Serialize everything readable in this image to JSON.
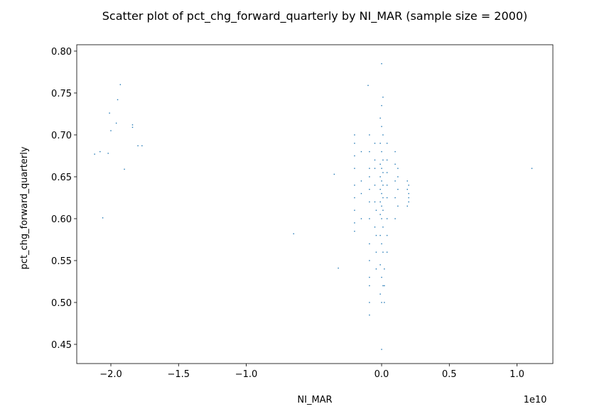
{
  "chart_data": {
    "type": "scatter",
    "title": "Scatter plot of pct_chg_forward_quarterly by NI_MAR (sample size = 2000)",
    "x_label": "NI_MAR",
    "y_label": "pct_chg_forward_quarterly",
    "x_offset_label": "1e10",
    "color": "#1f77b4",
    "x": [
      -2.12,
      -2.08,
      -2.02,
      -2.06,
      -2.0,
      -2.01,
      -1.95,
      -1.93,
      -1.96,
      -1.84,
      -1.84,
      -1.8,
      -1.77,
      -1.9,
      -0.65,
      -0.35,
      -0.32,
      1.11,
      0.0,
      0.0,
      -0.1,
      0,
      -0.01,
      0.01,
      0,
      -0.01,
      0.01,
      0,
      -0.01,
      0.01,
      0,
      -0.01,
      0.01,
      0,
      -0.01,
      0.01,
      0,
      -0.01,
      0.01,
      0,
      -0.01,
      0.01,
      0,
      -0.01,
      0.01,
      0,
      -0.01,
      0.01,
      0,
      -0.01,
      0.01,
      0,
      -0.09,
      -0.09,
      -0.09,
      -0.09,
      -0.09,
      -0.09,
      -0.09,
      -0.09,
      -0.09,
      -0.09,
      -0.09,
      -0.09,
      -0.09,
      -0.2,
      -0.2,
      -0.2,
      -0.2,
      -0.2,
      -0.2,
      -0.2,
      -0.2,
      -0.2,
      -0.15,
      -0.15,
      -0.15,
      -0.15,
      -0.05,
      -0.05,
      -0.05,
      -0.05,
      -0.05,
      -0.05,
      0.04,
      0.04,
      0.04,
      0.04,
      0.04,
      0.04,
      0.04,
      0.04,
      0.1,
      0.1,
      0.1,
      0.1,
      0.1,
      0.12,
      0.12,
      0.12,
      0.12,
      0.2,
      0.2,
      0.2,
      0.2,
      0.19,
      0.19,
      0.19,
      -0.04,
      -0.04,
      -0.04,
      -0.04,
      0.02,
      0.02,
      0.02
    ],
    "values": [
      0.677,
      0.68,
      0.678,
      0.601,
      0.705,
      0.726,
      0.742,
      0.76,
      0.714,
      0.712,
      0.709,
      0.687,
      0.687,
      0.659,
      0.582,
      0.653,
      0.541,
      0.66,
      0.785,
      0.444,
      0.759,
      0.5,
      0.51,
      0.52,
      0.53,
      0.545,
      0.56,
      0.57,
      0.58,
      0.59,
      0.6,
      0.605,
      0.61,
      0.615,
      0.62,
      0.625,
      0.63,
      0.635,
      0.64,
      0.645,
      0.65,
      0.655,
      0.66,
      0.665,
      0.67,
      0.68,
      0.69,
      0.7,
      0.71,
      0.72,
      0.745,
      0.735,
      0.485,
      0.5,
      0.52,
      0.53,
      0.55,
      0.57,
      0.6,
      0.62,
      0.635,
      0.65,
      0.66,
      0.68,
      0.7,
      0.585,
      0.595,
      0.61,
      0.625,
      0.64,
      0.66,
      0.675,
      0.69,
      0.7,
      0.6,
      0.63,
      0.645,
      0.68,
      0.59,
      0.62,
      0.64,
      0.66,
      0.67,
      0.69,
      0.56,
      0.58,
      0.6,
      0.625,
      0.64,
      0.655,
      0.67,
      0.69,
      0.6,
      0.625,
      0.645,
      0.665,
      0.68,
      0.615,
      0.635,
      0.65,
      0.66,
      0.63,
      0.64,
      0.62,
      0.625,
      0.615,
      0.645,
      0.635,
      0.54,
      0.56,
      0.58,
      0.61,
      0.5,
      0.52,
      0.54
    ],
    "xlim": [
      -2.252,
      1.265
    ],
    "ylim": [
      0.4271,
      0.8076
    ],
    "xticks": [
      {
        "value": -2,
        "label": "−2.0"
      },
      {
        "value": -1.5,
        "label": "−1.5"
      },
      {
        "value": -1,
        "label": "−1.0"
      },
      {
        "value": 0,
        "label": "0.0"
      },
      {
        "value": 0.5,
        "label": "0.5"
      },
      {
        "value": 1,
        "label": "1.0"
      }
    ],
    "yticks": [
      {
        "value": 0.45,
        "label": "0.45"
      },
      {
        "value": 0.5,
        "label": "0.50"
      },
      0.55,
      {
        "value": 0.6,
        "label": "0.60"
      },
      0.65,
      {
        "value": 0.7,
        "label": "0.70"
      },
      0.75,
      {
        "value": 0.8,
        "label": "0.80"
      }
    ],
    "grid": false
  }
}
